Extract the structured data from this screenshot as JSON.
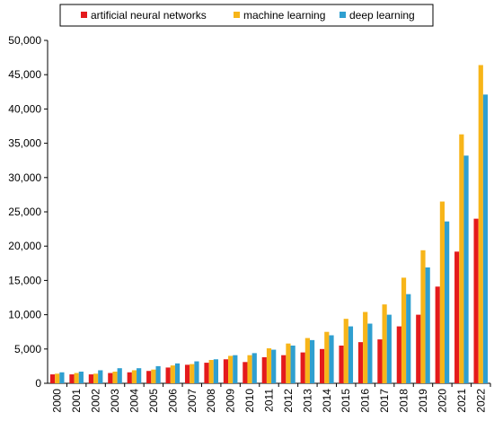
{
  "chart_data": {
    "type": "bar",
    "categories": [
      "2000",
      "2001",
      "2002",
      "2003",
      "2004",
      "2005",
      "2006",
      "2007",
      "2008",
      "2009",
      "2010",
      "2011",
      "2012",
      "2013",
      "2014",
      "2015",
      "2016",
      "2017",
      "2018",
      "2019",
      "2020",
      "2021",
      "2022"
    ],
    "series": [
      {
        "name": "artificial neural networks",
        "color": "#e41a1c",
        "values": [
          1300,
          1300,
          1300,
          1500,
          1600,
          1800,
          2300,
          2700,
          3000,
          3500,
          3100,
          3800,
          4100,
          4500,
          5000,
          5500,
          6000,
          6400,
          8300,
          10000,
          14100,
          19200,
          24000
        ]
      },
      {
        "name": "machine learning",
        "color": "#f7b519",
        "values": [
          1400,
          1500,
          1400,
          1700,
          1900,
          2000,
          2600,
          2800,
          3400,
          4000,
          4100,
          5100,
          5800,
          6600,
          7500,
          9400,
          10400,
          11500,
          15400,
          19400,
          26500,
          36300,
          46400
        ]
      },
      {
        "name": "deep learning",
        "color": "#2f9fd0",
        "values": [
          1600,
          1700,
          1900,
          2200,
          2200,
          2500,
          2900,
          3200,
          3500,
          4100,
          4400,
          4900,
          5500,
          6300,
          7000,
          8300,
          8700,
          10000,
          13000,
          16900,
          23600,
          33200,
          42100
        ]
      }
    ],
    "y_ticks": [
      "0",
      "5,000",
      "10,000",
      "15,000",
      "20,000",
      "25,000",
      "30,000",
      "35,000",
      "40,000",
      "45,000",
      "50,000"
    ],
    "ylim": [
      0,
      50000
    ],
    "legend_position": "top-center",
    "grid": false
  }
}
